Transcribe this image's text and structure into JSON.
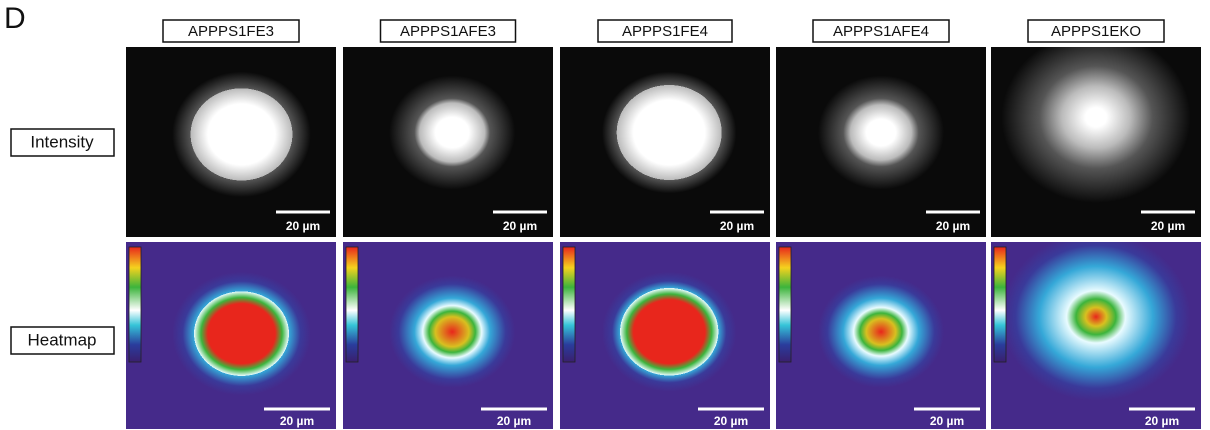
{
  "panel_label": "D",
  "columns": [
    "APPPS1FE3",
    "APPPS1AFE3",
    "APPPS1FE4",
    "APPPS1AFE4",
    "APPPS1EKO"
  ],
  "rows": [
    {
      "label": "Intensity",
      "scale_bars": [
        "20 µm",
        "20 µm",
        "20 µm",
        "20 µm",
        "20 µm"
      ]
    },
    {
      "label": "Heatmap",
      "scale_bars": [
        "20 µm",
        "20 µm",
        "20 µm",
        "20 µm",
        "20 µm"
      ]
    }
  ]
}
